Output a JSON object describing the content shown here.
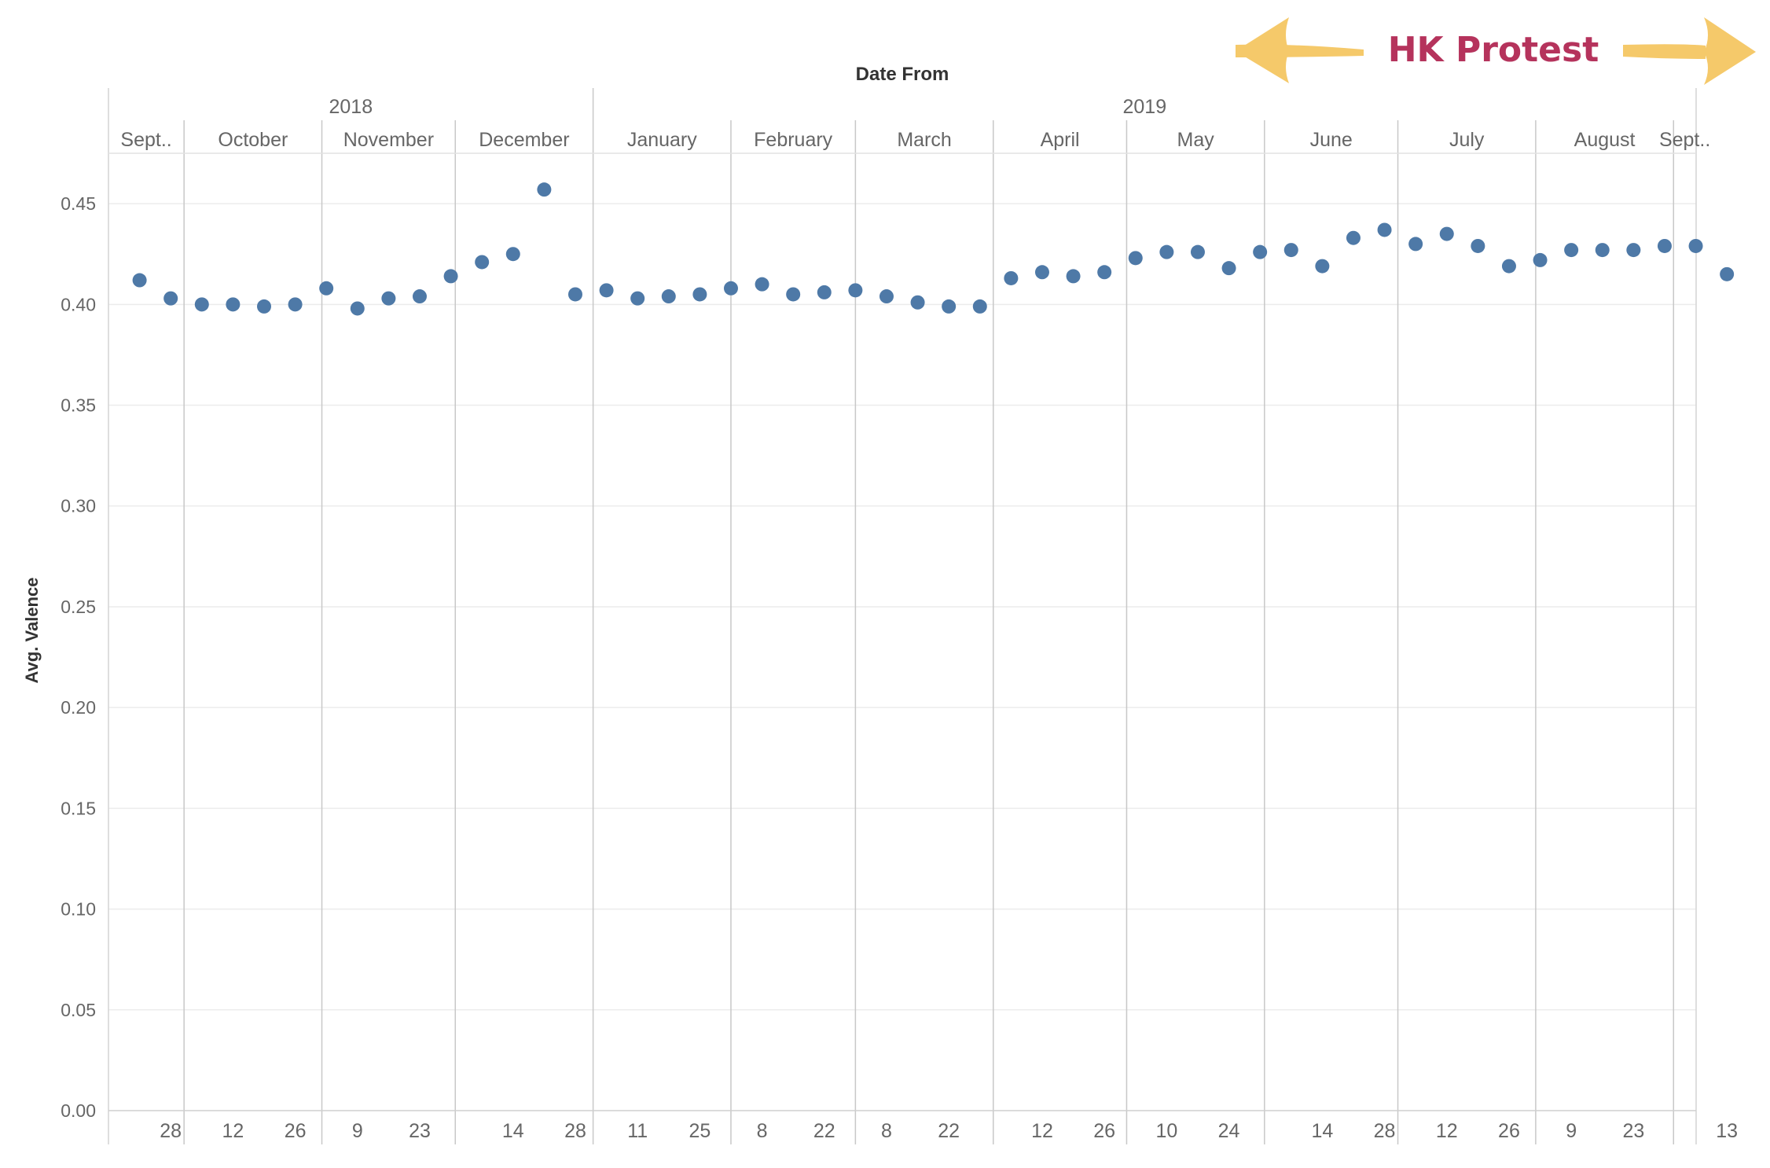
{
  "chart_data": {
    "type": "scatter",
    "title": "",
    "xlabel": "Date From",
    "ylabel": "Avg. Valence",
    "ylim": [
      0,
      0.475
    ],
    "y_ticks": [
      "0.00",
      "0.05",
      "0.10",
      "0.15",
      "0.20",
      "0.25",
      "0.30",
      "0.35",
      "0.40",
      "0.45"
    ],
    "grid": true,
    "point_color": "#4e79a7",
    "years": [
      "2018",
      "2019"
    ],
    "months": [
      "Sept..",
      "October",
      "November",
      "December",
      "January",
      "February",
      "March",
      "April",
      "May",
      "June",
      "July",
      "August",
      "Sept.."
    ],
    "bottom_tick_labels": [
      "28",
      "12",
      "26",
      "9",
      "23",
      "14",
      "28",
      "11",
      "25",
      "8",
      "22",
      "8",
      "22",
      "12",
      "26",
      "10",
      "24",
      "14",
      "28",
      "12",
      "26",
      "9",
      "23",
      "13"
    ],
    "x": [
      "2018-09-21",
      "2018-09-28",
      "2018-10-05",
      "2018-10-12",
      "2018-10-19",
      "2018-10-26",
      "2018-11-02",
      "2018-11-09",
      "2018-11-16",
      "2018-11-23",
      "2018-11-30",
      "2018-12-07",
      "2018-12-14",
      "2018-12-21",
      "2018-12-28",
      "2019-01-04",
      "2019-01-11",
      "2019-01-18",
      "2019-01-25",
      "2019-02-01",
      "2019-02-08",
      "2019-02-15",
      "2019-02-22",
      "2019-03-01",
      "2019-03-08",
      "2019-03-15",
      "2019-03-22",
      "2019-03-29",
      "2019-04-05",
      "2019-04-12",
      "2019-04-19",
      "2019-04-26",
      "2019-05-03",
      "2019-05-10",
      "2019-05-17",
      "2019-05-24",
      "2019-05-31",
      "2019-06-07",
      "2019-06-14",
      "2019-06-21",
      "2019-06-28",
      "2019-07-05",
      "2019-07-12",
      "2019-07-19",
      "2019-07-26",
      "2019-08-02",
      "2019-08-09",
      "2019-08-16",
      "2019-08-23",
      "2019-08-30",
      "2019-09-06",
      "2019-09-13"
    ],
    "y": [
      0.412,
      0.403,
      0.4,
      0.4,
      0.399,
      0.4,
      0.408,
      0.398,
      0.403,
      0.404,
      0.414,
      0.421,
      0.425,
      0.457,
      0.405,
      0.407,
      0.403,
      0.404,
      0.405,
      0.408,
      0.41,
      0.405,
      0.406,
      0.407,
      0.404,
      0.401,
      0.399,
      0.399,
      0.413,
      0.416,
      0.414,
      0.416,
      0.423,
      0.426,
      0.426,
      0.418,
      0.426,
      0.427,
      0.419,
      0.433,
      0.437,
      0.43,
      0.435,
      0.429,
      0.419,
      0.422,
      0.427,
      0.427,
      0.427,
      0.429,
      0.429,
      0.415
    ],
    "annotation": {
      "text": "HK Protest",
      "text_color": "#b5335c",
      "arrow_color": "#f5c96a"
    }
  }
}
